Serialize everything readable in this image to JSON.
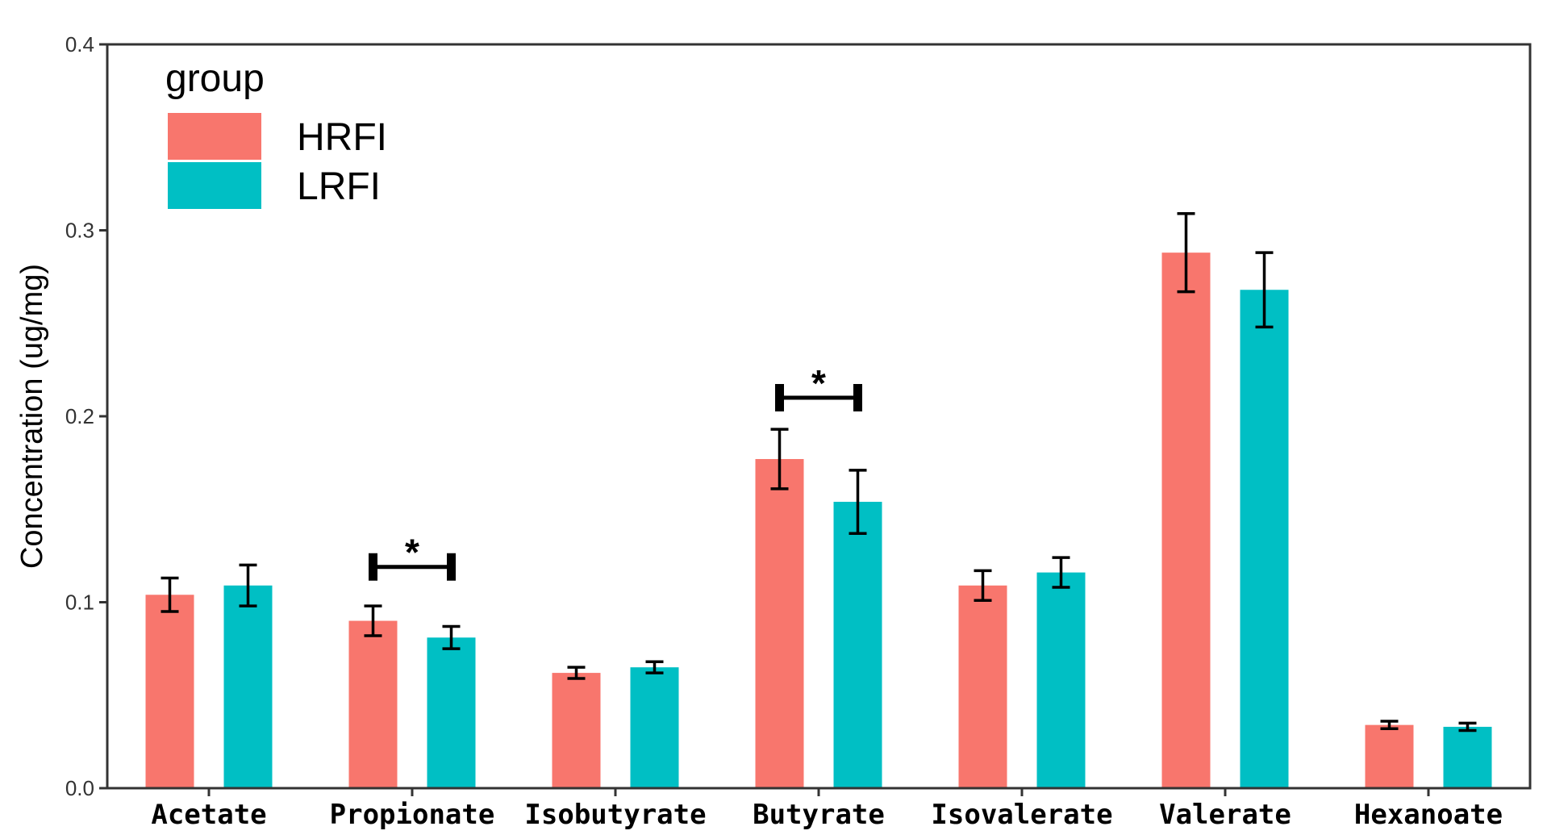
{
  "chart_data": {
    "type": "bar",
    "categories": [
      "Acetate",
      "Propionate",
      "Isobutyrate",
      "Butyrate",
      "Isovalerate",
      "Valerate",
      "Hexanoate"
    ],
    "series": [
      {
        "name": "HRFI",
        "color": "#F8766D",
        "values": [
          0.104,
          0.09,
          0.062,
          0.177,
          0.109,
          0.288,
          0.034
        ],
        "error": [
          0.009,
          0.008,
          0.003,
          0.016,
          0.008,
          0.021,
          0.002
        ]
      },
      {
        "name": "LRFI",
        "color": "#00BFC4",
        "values": [
          0.109,
          0.081,
          0.065,
          0.154,
          0.116,
          0.268,
          0.033
        ],
        "error": [
          0.011,
          0.006,
          0.003,
          0.017,
          0.008,
          0.02,
          0.002
        ]
      }
    ],
    "ylabel": "Concentration (ug/mg)",
    "xlabel": "",
    "ylim": [
      0,
      0.4
    ],
    "yticks": [
      "0.0",
      "0.1",
      "0.2",
      "0.3",
      "0.4"
    ],
    "grid": false,
    "legend": {
      "title": "group",
      "placement": "top-left"
    },
    "annotations": [
      {
        "category": "Propionate",
        "text": "*",
        "y": 0.119
      },
      {
        "category": "Butyrate",
        "text": "*",
        "y": 0.21
      }
    ]
  }
}
